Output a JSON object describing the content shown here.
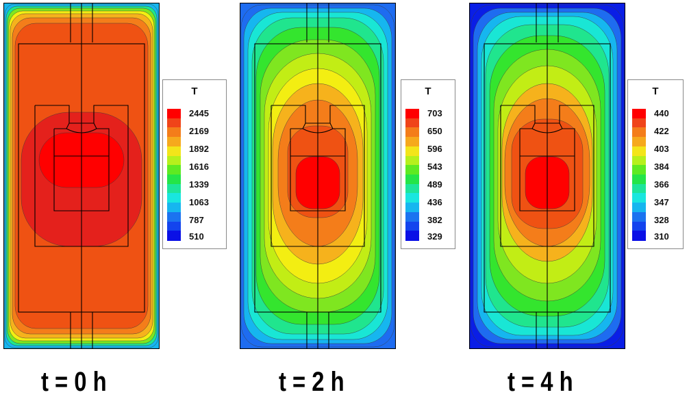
{
  "colors": {
    "stops": [
      "#0a1ee6",
      "#1e6cf0",
      "#16b6ef",
      "#19e6d5",
      "#20e58e",
      "#34e52e",
      "#7fe620",
      "#c2ed15",
      "#f3ee12",
      "#f6b21c",
      "#f47d1a",
      "#ef5213",
      "#e4211c",
      "#ff0000"
    ],
    "legend_colors": [
      "#ff0000",
      "#f04419",
      "#f47d1a",
      "#f6a91d",
      "#f3e51a",
      "#b6f01c",
      "#5eea22",
      "#24e548",
      "#1de59b",
      "#19e6df",
      "#16b6ef",
      "#1b73f0",
      "#1344ee",
      "#0a10e6"
    ],
    "outline": "#000000",
    "background": "#ffffff"
  },
  "chart_data": [
    {
      "type": "heatmap",
      "variable": "T",
      "caption": "t = 0 h",
      "legend_title": "T",
      "legend_ticks": [
        2445,
        2169,
        1892,
        1616,
        1339,
        1063,
        787,
        510
      ],
      "range": [
        510,
        2445
      ],
      "max_location": "core (interior block)",
      "gradient": "steep, confined to thin outer boundary layer"
    },
    {
      "type": "heatmap",
      "variable": "T",
      "caption": "t = 2 h",
      "legend_title": "T",
      "legend_ticks": [
        703,
        650,
        596,
        543,
        489,
        436,
        382,
        329
      ],
      "range": [
        329,
        703
      ],
      "max_location": "lower inner block",
      "gradient": "broad, rings from core to outer wall"
    },
    {
      "type": "heatmap",
      "variable": "T",
      "caption": "t = 4 h",
      "legend_title": "T",
      "legend_ticks": [
        440,
        422,
        403,
        384,
        366,
        347,
        328,
        310
      ],
      "range": [
        310,
        440
      ],
      "max_location": "lower inner block",
      "gradient": "broad, rings from core to outer wall"
    }
  ],
  "panels": [
    {
      "caption": "t = 0 h",
      "legend": {
        "title": "T",
        "ticks": [
          "2445",
          "2169",
          "1892",
          "1616",
          "1339",
          "1063",
          "787",
          "510"
        ]
      }
    },
    {
      "caption": "t = 2 h",
      "legend": {
        "title": "T",
        "ticks": [
          "703",
          "650",
          "596",
          "543",
          "489",
          "436",
          "382",
          "329"
        ]
      }
    },
    {
      "caption": "t = 4 h",
      "legend": {
        "title": "T",
        "ticks": [
          "440",
          "422",
          "403",
          "384",
          "366",
          "347",
          "328",
          "310"
        ]
      }
    }
  ]
}
